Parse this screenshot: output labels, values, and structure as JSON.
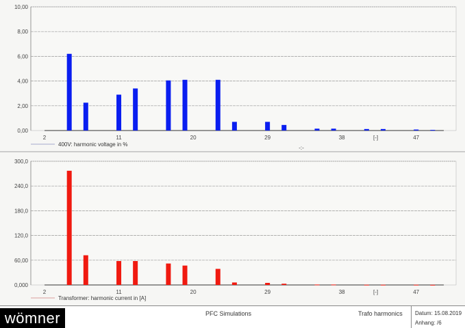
{
  "chart_data": [
    {
      "type": "bar",
      "legend": "400V: harmonic voltage in %",
      "legend_placement": "bottom-left",
      "color": "#0a1ef0",
      "x_tick_labels": [
        "2",
        "11",
        "20",
        "29",
        "38",
        "[-]",
        "47"
      ],
      "x_extra_label": "-:-",
      "y_tick_labels": [
        "0,00",
        "2,00",
        "4,00",
        "6,00",
        "8,00",
        "10,00"
      ],
      "ylim": [
        0,
        10
      ],
      "xlim": [
        2,
        50
      ],
      "grid": true,
      "x": [
        5,
        7,
        11,
        13,
        17,
        19,
        23,
        25,
        29,
        31,
        35,
        37,
        41,
        43,
        47,
        49
      ],
      "values": [
        6.2,
        2.25,
        2.9,
        3.4,
        4.05,
        4.1,
        4.1,
        0.7,
        0.7,
        0.45,
        0.15,
        0.15,
        0.12,
        0.12,
        0.08,
        0.05
      ]
    },
    {
      "type": "bar",
      "legend": "Transformer: harmonic current in [A]",
      "legend_placement": "bottom-left",
      "color": "#f01a10",
      "x_tick_labels": [
        "2",
        "11",
        "20",
        "29",
        "38",
        "[-]",
        "47"
      ],
      "y_tick_labels": [
        "0,000",
        "60,00",
        "120,0",
        "180,0",
        "240,0",
        "300,0"
      ],
      "ylim": [
        0,
        300
      ],
      "xlim": [
        2,
        50
      ],
      "grid": true,
      "x": [
        5,
        7,
        11,
        13,
        17,
        19,
        23,
        25,
        29,
        31,
        35,
        37,
        41,
        43,
        47,
        49
      ],
      "values": [
        277,
        72,
        58,
        58,
        52,
        47,
        39,
        6,
        5,
        3,
        1,
        1,
        0.5,
        0.5,
        0.5,
        0.3
      ]
    }
  ],
  "footer": {
    "logo": "wömner",
    "title": "PFC Simulations",
    "subtitle": "Trafo harmonics",
    "date": "Datum: 15.08.2019",
    "annex": "Anhang:  /6"
  }
}
